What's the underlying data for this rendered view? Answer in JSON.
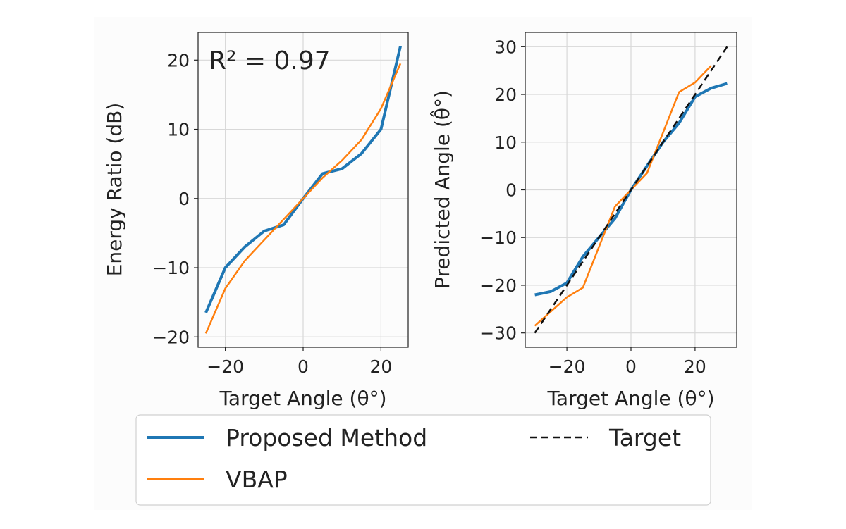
{
  "colors": {
    "proposed": "#1f77b4",
    "vbap": "#ff7f0e",
    "target": "#111111"
  },
  "legend": {
    "entries": [
      {
        "label": "Proposed Method",
        "style": "solid",
        "color": "#1f77b4"
      },
      {
        "label": "VBAP",
        "style": "solid",
        "color": "#ff7f0e"
      },
      {
        "label": "Target",
        "style": "dashed",
        "color": "#111111"
      }
    ],
    "placement": "bottom-center"
  },
  "chart_data": [
    {
      "type": "line",
      "xlabel": "Target Angle (θ°)",
      "ylabel": "Energy Ratio (dB)",
      "xlim": [
        -27,
        27
      ],
      "ylim": [
        -21.5,
        24
      ],
      "xticks": [
        -20,
        0,
        20
      ],
      "yticks": [
        -20,
        -10,
        0,
        10,
        20
      ],
      "annotation": "R² = 0.97",
      "grid": true,
      "series": [
        {
          "name": "Proposed Method",
          "x": [
            -25,
            -20,
            -15,
            -10,
            -5,
            0,
            5,
            10,
            15,
            20,
            25
          ],
          "y": [
            -16.5,
            -10,
            -7,
            -4.7,
            -3.8,
            0,
            3.6,
            4.3,
            6.5,
            10,
            22
          ]
        },
        {
          "name": "VBAP",
          "x": [
            -25,
            -20,
            -15,
            -10,
            -5,
            0,
            5,
            10,
            15,
            20,
            25
          ],
          "y": [
            -19.5,
            -13,
            -9,
            -6,
            -3,
            0,
            3,
            5.5,
            8.5,
            13,
            19.5
          ]
        }
      ]
    },
    {
      "type": "line",
      "xlabel": "Target Angle (θ°)",
      "ylabel": "Predicted Angle (θ̂°)",
      "xlim": [
        -33,
        33
      ],
      "ylim": [
        -33,
        33
      ],
      "xticks": [
        -20,
        0,
        20
      ],
      "yticks": [
        -30,
        -20,
        -10,
        0,
        10,
        20,
        30
      ],
      "grid": true,
      "series": [
        {
          "name": "Proposed Method",
          "x": [
            -30,
            -25,
            -20,
            -15,
            -10,
            -5,
            0,
            5,
            10,
            15,
            20,
            25,
            30
          ],
          "y": [
            -22,
            -21.3,
            -19.5,
            -14,
            -10,
            -6,
            0,
            5,
            10,
            14,
            19.5,
            21.3,
            22.3
          ]
        },
        {
          "name": "VBAP",
          "x": [
            -30,
            -25,
            -20,
            -15,
            -10,
            -5,
            0,
            5,
            10,
            15,
            20,
            25
          ],
          "y": [
            -28.5,
            -25.5,
            -22.5,
            -20.5,
            -12,
            -3.5,
            0,
            3.5,
            12,
            20.5,
            22.5,
            26
          ]
        },
        {
          "name": "Target",
          "x": [
            -30,
            30
          ],
          "y": [
            -30,
            30
          ]
        }
      ]
    }
  ]
}
